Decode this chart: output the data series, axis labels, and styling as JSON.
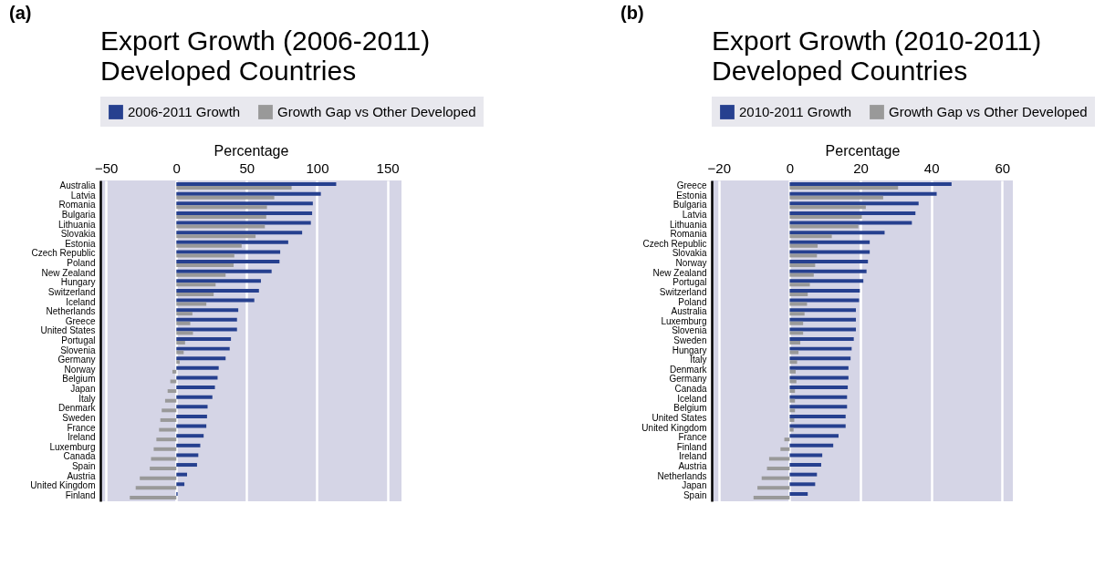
{
  "chart_data": [
    {
      "type": "bar",
      "orientation": "horizontal",
      "title": "Export Growth (2006-2011)\nDeveloped Countries",
      "xlabel": "Percentage",
      "annotations": [
        "(a)"
      ],
      "legend": "top",
      "grid": "x",
      "xlim": [
        -54,
        160
      ],
      "xticks": [
        -50,
        0,
        50,
        100,
        150
      ],
      "categories": [
        "Australia",
        "Latvia",
        "Romania",
        "Bulgaria",
        "Lithuania",
        "Slovakia",
        "Estonia",
        "Czech Republic",
        "Poland",
        "New Zealand",
        "Hungary",
        "Switzerland",
        "Iceland",
        "Netherlands",
        "Greece",
        "United States",
        "Portugal",
        "Slovenia",
        "Germany",
        "Norway",
        "Belgium",
        "Japan",
        "Italy",
        "Denmark",
        "Sweden",
        "France",
        "Ireland",
        "Luxemburg",
        "Canada",
        "Spain",
        "Austria",
        "United Kingdom",
        "Finland"
      ],
      "series": [
        {
          "name": "2006-2011 Growth",
          "color": "#26408f",
          "values": [
            113.6,
            102.7,
            97.0,
            96.5,
            95.6,
            89.4,
            79.5,
            73.8,
            73.3,
            67.7,
            60.1,
            58.7,
            55.4,
            44.0,
            43.1,
            43.1,
            38.8,
            37.9,
            35.0,
            30.1,
            29.3,
            27.4,
            25.6,
            22.2,
            21.8,
            21.3,
            19.4,
            17.0,
            15.6,
            14.7,
            7.6,
            5.7,
            0.9
          ]
        },
        {
          "name": "Growth Gap vs Other Developed",
          "color": "#999999",
          "values": [
            81.9,
            69.6,
            64.4,
            63.9,
            62.9,
            56.3,
            46.4,
            41.2,
            40.7,
            35.0,
            27.9,
            26.5,
            21.3,
            11.4,
            9.9,
            11.8,
            6.2,
            5.2,
            2.4,
            -2.8,
            -4.3,
            -6.2,
            -8.0,
            -10.4,
            -11.4,
            -12.3,
            -14.2,
            -16.1,
            -18.0,
            -18.9,
            -26.0,
            -28.9,
            -33.1
          ]
        }
      ]
    },
    {
      "type": "bar",
      "orientation": "horizontal",
      "title": "Export Growth (2010-2011)\nDeveloped Countries",
      "xlabel": "Percentage",
      "annotations": [
        "(b)"
      ],
      "legend": "top",
      "grid": "x",
      "xlim": [
        -22,
        63
      ],
      "xticks": [
        -20,
        0,
        20,
        40,
        60
      ],
      "categories": [
        "Greece",
        "Estonia",
        "Bulgaria",
        "Latvia",
        "Lithuania",
        "Romania",
        "Czech Republic",
        "Slovakia",
        "Norway",
        "New Zealand",
        "Portugal",
        "Switzerland",
        "Poland",
        "Australia",
        "Luxemburg",
        "Slovenia",
        "Sweden",
        "Hungary",
        "Italy",
        "Denmark",
        "Germany",
        "Canada",
        "Iceland",
        "Belgium",
        "United States",
        "United Kingdom",
        "France",
        "Finland",
        "Ireland",
        "Austria",
        "Netherlands",
        "Japan",
        "Spain"
      ],
      "series": [
        {
          "name": "2010-2011 Growth",
          "color": "#26408f",
          "values": [
            45.7,
            41.5,
            36.4,
            35.5,
            34.5,
            26.8,
            22.6,
            22.6,
            22.1,
            21.7,
            20.8,
            19.8,
            19.6,
            18.7,
            18.7,
            18.7,
            18.1,
            17.5,
            17.2,
            16.6,
            16.6,
            16.4,
            16.2,
            16.2,
            15.8,
            15.8,
            13.8,
            12.3,
            9.2,
            8.9,
            7.7,
            7.2,
            5.1
          ]
        },
        {
          "name": "Growth Gap vs Other Developed",
          "color": "#999999",
          "values": [
            30.6,
            26.4,
            21.5,
            20.4,
            19.4,
            11.9,
            7.9,
            7.7,
            7.2,
            6.8,
            5.7,
            5.1,
            4.9,
            4.2,
            3.8,
            3.8,
            3.0,
            2.5,
            2.1,
            1.7,
            1.9,
            1.5,
            1.5,
            1.5,
            1.3,
            1.1,
            -1.5,
            -2.6,
            -5.8,
            -6.4,
            -7.9,
            -9.1,
            -10.2
          ]
        }
      ]
    }
  ]
}
